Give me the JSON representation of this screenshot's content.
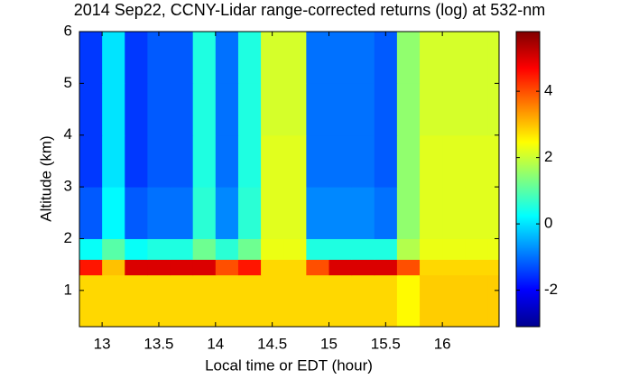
{
  "chart_data": {
    "type": "heatmap",
    "title": "2014 Sep22, CCNY-Lidar range-corrected returns (log) at 532-nm",
    "xlabel": "Local time or EDT (hour)",
    "ylabel": "Altitude (km)",
    "xlim": [
      12.8,
      16.5
    ],
    "ylim": [
      0.3,
      6
    ],
    "xticks": [
      13,
      13.5,
      14,
      14.5,
      15,
      15.5,
      16
    ],
    "yticks": [
      1,
      2,
      3,
      4,
      5,
      6
    ],
    "x_edges": [
      12.8,
      13,
      13.2,
      13.4,
      13.6,
      13.8,
      14,
      14.2,
      14.4,
      14.6,
      14.8,
      15,
      15.2,
      15.4,
      15.6,
      15.8,
      16,
      16.2,
      16.4,
      16.5
    ],
    "y_edges": [
      0.3,
      1.3,
      1.6,
      2,
      3,
      4,
      5,
      6
    ],
    "z": [
      [
        2.8,
        2.8,
        2.8,
        2.8,
        2.8,
        2.8,
        2.8,
        2.8,
        2.8,
        2.8,
        2.8,
        2.8,
        2.8,
        2.8,
        2.5,
        2.9,
        2.9,
        2.9,
        2.9
      ],
      [
        4.5,
        3,
        5,
        5,
        5,
        5,
        4,
        4.5,
        2.8,
        2.8,
        4,
        5,
        5,
        5,
        4,
        2.8,
        2.8,
        2.8,
        2.8
      ],
      [
        0.3,
        1,
        0.3,
        0.5,
        0.5,
        1.2,
        0.6,
        1.2,
        2.3,
        2.3,
        0.5,
        0.5,
        0.5,
        0.5,
        1.8,
        2.3,
        2.3,
        2.3,
        2.3
      ],
      [
        -1.2,
        0.2,
        -1.2,
        -1,
        -1,
        0.6,
        -0.8,
        0.6,
        2.2,
        2.2,
        -0.8,
        -0.8,
        -0.8,
        -1,
        1.5,
        2.2,
        2.2,
        2.2,
        2.2
      ],
      [
        -1.5,
        0,
        -1.5,
        -1.2,
        -1.2,
        0.5,
        -1,
        0.5,
        2.2,
        2.2,
        -1,
        -1,
        -1,
        -1.2,
        1.5,
        2.2,
        2.2,
        2.2,
        2.2
      ],
      [
        -1.5,
        0,
        -1.5,
        -1.2,
        -1.2,
        0.5,
        -1,
        0.5,
        2.1,
        2.1,
        -1,
        -1,
        -1,
        -1.2,
        1.5,
        2.1,
        2.1,
        2.1,
        2.1
      ],
      [
        -1.5,
        0,
        -1.5,
        -1.2,
        -1.2,
        0.5,
        -1,
        0.5,
        2.1,
        2.1,
        -1,
        -1,
        -1,
        -1.2,
        1.5,
        2.1,
        2.1,
        2.1,
        2.1
      ]
    ],
    "clim": [
      -3.1,
      5.8
    ],
    "cticks": [
      -2,
      0,
      2,
      4
    ],
    "colormap": "jet"
  }
}
